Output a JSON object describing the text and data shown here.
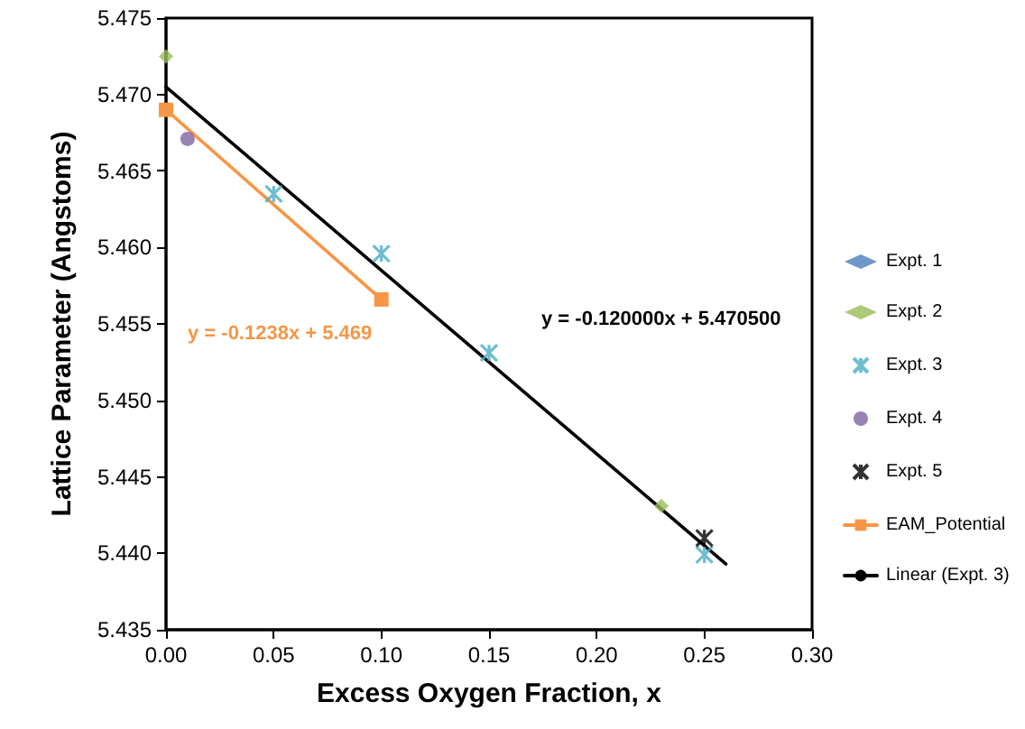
{
  "chart_data": {
    "type": "scatter",
    "xlabel": "Excess Oxygen Fraction, x",
    "ylabel": "Lattice Parameter (Angstoms)",
    "xlim": [
      0,
      0.3
    ],
    "xticks": [
      {
        "value": 0,
        "label": "0.00"
      },
      {
        "value": 0.05,
        "label": "0.05"
      },
      {
        "value": 0.1,
        "label": "0.10"
      },
      {
        "value": 0.15,
        "label": "0.15"
      },
      {
        "value": 0.2,
        "label": "0.20"
      },
      {
        "value": 0.25,
        "label": "0.25"
      },
      {
        "value": 0.3,
        "label": "0.30"
      }
    ],
    "ylim": [
      5.435,
      5.475
    ],
    "yticks": [
      {
        "value": 5.435,
        "label": "5.435"
      },
      {
        "value": 5.44,
        "label": "5.440"
      },
      {
        "value": 5.445,
        "label": "5.445"
      },
      {
        "value": 5.45,
        "label": "5.450"
      },
      {
        "value": 5.455,
        "label": "5.455"
      },
      {
        "value": 5.46,
        "label": "5.460"
      },
      {
        "value": 5.465,
        "label": "5.465"
      },
      {
        "value": 5.47,
        "label": "5.470"
      },
      {
        "value": 5.475,
        "label": "5.475"
      }
    ],
    "grid": false,
    "legend": "right",
    "series": [
      {
        "name": "Expt. 1",
        "color": "#4a7ebb",
        "marker": "diamond"
      },
      {
        "name": "Expt. 2",
        "color": "#9bbb59",
        "marker": "diamond",
        "x": [
          0,
          0.23
        ],
        "values": [
          5.4725,
          5.4431
        ]
      },
      {
        "name": "Expt. 3",
        "color": "#4bacc6",
        "marker": "cross",
        "x": [
          0.05,
          0.1,
          0.15,
          0.25
        ],
        "values": [
          5.4635,
          5.4596,
          5.4531,
          5.4399
        ]
      },
      {
        "name": "Expt. 4",
        "color": "#8064a2",
        "marker": "circle",
        "x": [
          0.01
        ],
        "values": [
          5.4671
        ]
      },
      {
        "name": "Expt. 5",
        "color": "#000000",
        "marker": "cross",
        "x": [
          0.25
        ],
        "values": [
          5.441
        ]
      },
      {
        "name": "EAM_Potential",
        "type": "line",
        "color": "#f79646",
        "marker": "square",
        "x": [
          0,
          0.1
        ],
        "values": [
          5.469,
          5.4566
        ]
      },
      {
        "name": "Linear (Expt. 3)",
        "type": "line",
        "color": "#000000",
        "marker": "none",
        "x": [
          0,
          0.26
        ],
        "values": [
          5.4705,
          5.4393
        ]
      }
    ],
    "annotations": [
      "y = -0.1238x + 5.469",
      "y = -0.120000x + 5.470500"
    ]
  }
}
